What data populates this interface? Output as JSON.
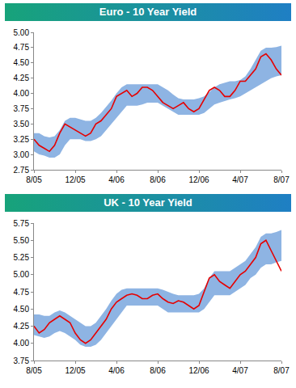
{
  "chart_data": [
    {
      "type": "line",
      "title": "Euro - 10 Year Yield",
      "categories": [
        "8/05",
        null,
        null,
        null,
        null,
        null,
        null,
        null,
        "12/05",
        null,
        null,
        null,
        null,
        null,
        null,
        null,
        "4/06",
        null,
        null,
        null,
        null,
        null,
        null,
        null,
        "8/06",
        null,
        null,
        null,
        null,
        null,
        null,
        null,
        "12/06",
        null,
        null,
        null,
        null,
        null,
        null,
        null,
        "4/07",
        null,
        null,
        null,
        null,
        null,
        null,
        null,
        "8/07"
      ],
      "series": [
        {
          "type": "band",
          "color": "#8eb4e3",
          "lower": [
            3.05,
            3.0,
            2.98,
            2.95,
            2.95,
            3.0,
            3.15,
            3.25,
            3.25,
            3.25,
            3.22,
            3.22,
            3.25,
            3.3,
            3.4,
            3.5,
            3.6,
            3.7,
            3.8,
            3.8,
            3.8,
            3.82,
            3.85,
            3.85,
            3.85,
            3.8,
            3.75,
            3.7,
            3.65,
            3.65,
            3.65,
            3.65,
            3.65,
            3.68,
            3.75,
            3.82,
            3.85,
            3.88,
            3.9,
            3.92,
            3.95,
            4.0,
            4.05,
            4.1,
            4.15,
            4.2,
            4.25,
            4.28,
            4.3
          ],
          "upper": [
            3.35,
            3.35,
            3.3,
            3.28,
            3.3,
            3.4,
            3.55,
            3.6,
            3.6,
            3.58,
            3.55,
            3.55,
            3.6,
            3.68,
            3.78,
            3.88,
            4.0,
            4.1,
            4.15,
            4.15,
            4.15,
            4.15,
            4.15,
            4.15,
            4.15,
            4.1,
            4.05,
            3.98,
            3.92,
            3.9,
            3.9,
            3.9,
            3.92,
            3.95,
            4.02,
            4.1,
            4.15,
            4.18,
            4.2,
            4.2,
            4.22,
            4.28,
            4.4,
            4.55,
            4.7,
            4.75,
            4.75,
            4.76,
            4.78
          ]
        },
        {
          "type": "line",
          "color": "#e60000",
          "values": [
            3.25,
            3.15,
            3.1,
            3.05,
            3.15,
            3.35,
            3.5,
            3.45,
            3.4,
            3.35,
            3.3,
            3.35,
            3.5,
            3.55,
            3.65,
            3.75,
            3.95,
            4.0,
            4.05,
            3.95,
            4.0,
            4.1,
            4.1,
            4.05,
            3.95,
            3.85,
            3.8,
            3.75,
            3.8,
            3.85,
            3.75,
            3.7,
            3.75,
            3.9,
            4.05,
            4.1,
            4.05,
            3.95,
            3.95,
            4.05,
            4.2,
            4.2,
            4.3,
            4.4,
            4.6,
            4.65,
            4.55,
            4.4,
            4.3
          ]
        }
      ],
      "ylim": [
        2.75,
        5
      ],
      "yticks": [
        2.75,
        {
          "value": 3,
          "label": "3.00"
        },
        3.25,
        {
          "value": 3.5,
          "label": "3.50"
        },
        3.75,
        {
          "value": 4,
          "label": "4.00"
        },
        4.25,
        {
          "value": 4.5,
          "label": "4.50"
        },
        4.75,
        {
          "value": 5,
          "label": "5.00"
        }
      ],
      "grid": false
    },
    {
      "type": "line",
      "title": "UK - 10 Year Yield",
      "categories": [
        "8/05",
        null,
        null,
        null,
        null,
        null,
        null,
        null,
        "12/05",
        null,
        null,
        null,
        null,
        null,
        null,
        null,
        "4/06",
        null,
        null,
        null,
        null,
        null,
        null,
        null,
        "8/06",
        null,
        null,
        null,
        null,
        null,
        null,
        null,
        "12/06",
        null,
        null,
        null,
        null,
        null,
        null,
        null,
        "4/07",
        null,
        null,
        null,
        null,
        null,
        null,
        null,
        "8/07"
      ],
      "series": [
        {
          "type": "band",
          "color": "#8eb4e3",
          "lower": [
            4.12,
            4.1,
            4.08,
            4.1,
            4.15,
            4.18,
            4.15,
            4.1,
            4.05,
            3.98,
            3.95,
            3.95,
            3.98,
            4.05,
            4.15,
            4.25,
            4.35,
            4.45,
            4.55,
            4.55,
            4.55,
            4.55,
            4.55,
            4.55,
            4.55,
            4.5,
            4.45,
            4.45,
            4.45,
            4.45,
            4.45,
            4.45,
            4.45,
            4.5,
            4.6,
            4.7,
            4.7,
            4.7,
            4.7,
            4.75,
            4.8,
            4.85,
            4.95,
            5.0,
            5.1,
            5.15,
            5.15,
            5.18,
            5.2
          ],
          "upper": [
            4.42,
            4.42,
            4.4,
            4.4,
            4.45,
            4.48,
            4.45,
            4.4,
            4.35,
            4.3,
            4.25,
            4.25,
            4.3,
            4.4,
            4.5,
            4.62,
            4.72,
            4.78,
            4.8,
            4.8,
            4.8,
            4.8,
            4.8,
            4.8,
            4.8,
            4.78,
            4.75,
            4.72,
            4.7,
            4.7,
            4.7,
            4.7,
            4.72,
            4.8,
            4.95,
            5.05,
            5.05,
            5.05,
            5.05,
            5.1,
            5.15,
            5.2,
            5.3,
            5.4,
            5.55,
            5.6,
            5.6,
            5.62,
            5.65
          ]
        },
        {
          "type": "line",
          "color": "#e60000",
          "values": [
            4.25,
            4.15,
            4.2,
            4.3,
            4.35,
            4.4,
            4.35,
            4.3,
            4.15,
            4.05,
            4.0,
            4.05,
            4.15,
            4.25,
            4.35,
            4.5,
            4.6,
            4.65,
            4.7,
            4.72,
            4.7,
            4.65,
            4.65,
            4.7,
            4.72,
            4.65,
            4.6,
            4.58,
            4.62,
            4.6,
            4.55,
            4.5,
            4.55,
            4.75,
            4.95,
            5.0,
            4.9,
            4.85,
            4.8,
            4.9,
            5.0,
            5.05,
            5.15,
            5.25,
            5.45,
            5.5,
            5.35,
            5.2,
            5.05
          ]
        }
      ],
      "ylim": [
        3.75,
        5.75
      ],
      "yticks": [
        3.75,
        {
          "value": 4,
          "label": "4.00"
        },
        4.25,
        {
          "value": 4.5,
          "label": "4.50"
        },
        4.75,
        {
          "value": 5,
          "label": "5.00"
        },
        5.25,
        {
          "value": 5.5,
          "label": "5.50"
        },
        5.75
      ],
      "grid": false
    }
  ]
}
